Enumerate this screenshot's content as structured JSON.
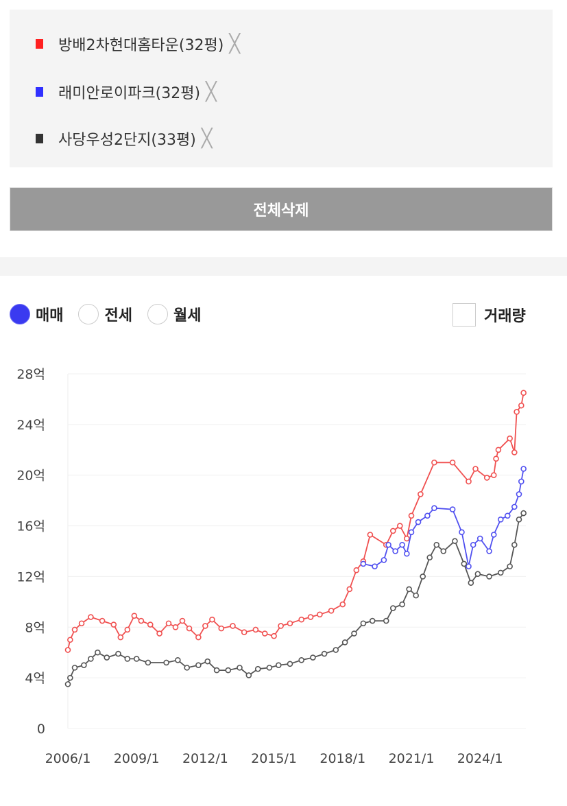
{
  "legend": {
    "items": [
      {
        "label": "방배2차현대홈타운(32평)",
        "color": "#ff2020"
      },
      {
        "label": "래미안로이파크(32평)",
        "color": "#3030ff"
      },
      {
        "label": "사당우성2단지(33평)",
        "color": "#333333"
      }
    ],
    "remove_glyph": "╳"
  },
  "delete_all_label": "전체삭제",
  "filters": {
    "options": [
      {
        "label": "매매",
        "selected": true
      },
      {
        "label": "전세",
        "selected": false
      },
      {
        "label": "월세",
        "selected": false
      }
    ],
    "volume_label": "거래량",
    "volume_checked": false
  },
  "chart_data": {
    "type": "line",
    "ylim": [
      0,
      28
    ],
    "xlim": [
      2006.0,
      2026.0
    ],
    "y_ticks": [
      "0",
      "4억",
      "8억",
      "12억",
      "16억",
      "20억",
      "24억",
      "28억"
    ],
    "x_ticks": [
      "2006/1",
      "2009/1",
      "2012/1",
      "2015/1",
      "2018/1",
      "2021/1",
      "2024/1"
    ],
    "grid": true,
    "series": [
      {
        "name": "방배2차현대홈타운(32평)",
        "color": "#f05050",
        "x": [
          2006.0,
          2006.1,
          2006.3,
          2006.6,
          2007.0,
          2007.5,
          2008.0,
          2008.3,
          2008.6,
          2008.9,
          2009.2,
          2009.6,
          2010.0,
          2010.4,
          2010.7,
          2011.0,
          2011.3,
          2011.7,
          2012.0,
          2012.3,
          2012.7,
          2013.2,
          2013.7,
          2014.2,
          2014.6,
          2015.0,
          2015.3,
          2015.7,
          2016.2,
          2016.6,
          2017.0,
          2017.5,
          2018.0,
          2018.3,
          2018.6,
          2018.9,
          2019.2,
          2019.9,
          2020.2,
          2020.5,
          2020.8,
          2021.0,
          2021.4,
          2022.0,
          2022.8,
          2023.5,
          2023.8,
          2024.3,
          2024.6,
          2024.7,
          2024.8,
          2025.3,
          2025.5,
          2025.6,
          2025.8,
          2025.9
        ],
        "y": [
          6.2,
          7.0,
          7.8,
          8.3,
          8.8,
          8.5,
          8.2,
          7.2,
          7.8,
          8.9,
          8.5,
          8.2,
          7.5,
          8.3,
          8.0,
          8.5,
          7.9,
          7.2,
          8.1,
          8.6,
          7.9,
          8.1,
          7.6,
          7.8,
          7.5,
          7.3,
          8.1,
          8.3,
          8.6,
          8.8,
          9.0,
          9.3,
          9.8,
          11.0,
          12.5,
          13.2,
          15.3,
          14.5,
          15.6,
          16.0,
          15.0,
          16.8,
          18.5,
          21.0,
          21.0,
          19.5,
          20.5,
          19.8,
          20.0,
          21.3,
          22.0,
          22.9,
          21.8,
          25.0,
          25.5,
          26.5
        ]
      },
      {
        "name": "래미안로이파크(32평)",
        "color": "#5050f0",
        "x": [
          2018.9,
          2019.4,
          2019.8,
          2020.0,
          2020.3,
          2020.6,
          2020.8,
          2021.0,
          2021.3,
          2021.7,
          2022.0,
          2022.8,
          2023.2,
          2023.5,
          2023.7,
          2024.0,
          2024.4,
          2024.6,
          2024.9,
          2025.2,
          2025.5,
          2025.7,
          2025.8,
          2025.9
        ],
        "y": [
          13.0,
          12.8,
          13.3,
          14.5,
          14.0,
          14.5,
          13.8,
          15.5,
          16.3,
          16.8,
          17.4,
          17.3,
          15.5,
          12.8,
          14.5,
          15.0,
          14.0,
          15.3,
          16.5,
          16.8,
          17.5,
          18.5,
          19.5,
          20.5
        ]
      },
      {
        "name": "사당우성2단지(33평)",
        "color": "#555555",
        "x": [
          2006.0,
          2006.1,
          2006.3,
          2006.7,
          2007.0,
          2007.3,
          2007.7,
          2008.2,
          2008.6,
          2009.0,
          2009.5,
          2010.3,
          2010.8,
          2011.2,
          2011.7,
          2012.1,
          2012.5,
          2013.0,
          2013.5,
          2013.9,
          2014.3,
          2014.8,
          2015.2,
          2015.7,
          2016.2,
          2016.7,
          2017.2,
          2017.7,
          2018.1,
          2018.5,
          2018.9,
          2019.3,
          2019.9,
          2020.2,
          2020.6,
          2020.9,
          2021.2,
          2021.5,
          2021.8,
          2022.1,
          2022.4,
          2022.9,
          2023.3,
          2023.6,
          2023.9,
          2024.4,
          2024.9,
          2025.3,
          2025.5,
          2025.7,
          2025.9
        ],
        "y": [
          3.5,
          4.0,
          4.8,
          5.0,
          5.5,
          6.0,
          5.6,
          5.9,
          5.5,
          5.5,
          5.2,
          5.2,
          5.4,
          4.8,
          5.0,
          5.3,
          4.6,
          4.6,
          4.8,
          4.2,
          4.7,
          4.8,
          5.0,
          5.1,
          5.4,
          5.6,
          5.9,
          6.2,
          6.8,
          7.5,
          8.3,
          8.5,
          8.5,
          9.5,
          9.8,
          11.0,
          10.5,
          12.0,
          13.5,
          14.5,
          14.0,
          14.8,
          13.0,
          11.5,
          12.2,
          12.0,
          12.3,
          12.8,
          14.5,
          16.5,
          17.0
        ]
      }
    ]
  }
}
